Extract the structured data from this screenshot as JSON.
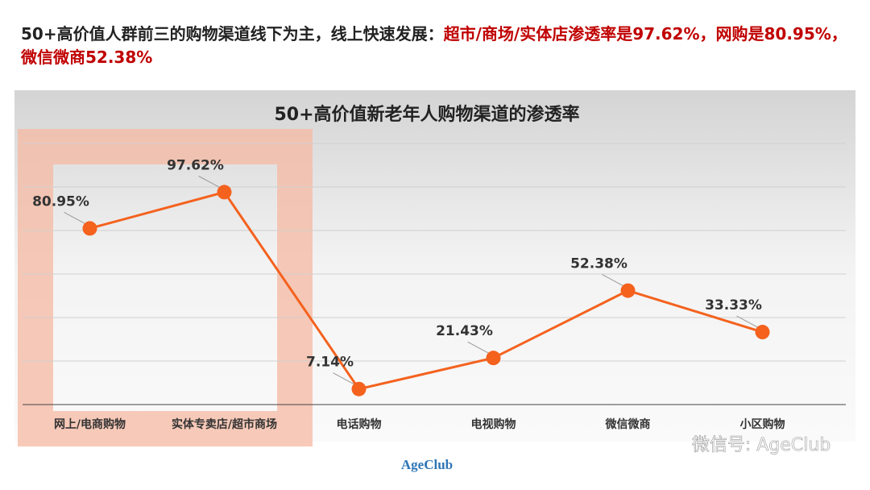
{
  "headline": [
    {
      "text": "50+高价值人群前三的购物渠道线下为主，线上快速发展：",
      "color": "#222222"
    },
    {
      "text": "超市/商场/实体店渗透率是97.62%，网购是80.95%，微信微商52.38%",
      "color": "#c00000"
    }
  ],
  "chart_data": {
    "type": "line",
    "title": "50+高价值新老年人购物渠道的渗透率",
    "categories": [
      "网上/电商购物",
      "实体专卖店/超市商场",
      "电话购物",
      "电视购物",
      "微信微商",
      "小区购物"
    ],
    "values": [
      80.95,
      97.62,
      7.14,
      21.43,
      52.38,
      33.33
    ],
    "value_labels": [
      "80.95%",
      "97.62%",
      "7.14%",
      "21.43%",
      "52.38%",
      "33.33%"
    ],
    "color": "#f4621e",
    "ylim": [
      0,
      120
    ],
    "yticks": [
      0,
      20,
      40,
      60,
      80,
      100,
      120
    ],
    "grid": true
  },
  "watermark": "微信号: AgeClub",
  "logo": "AgeClub"
}
